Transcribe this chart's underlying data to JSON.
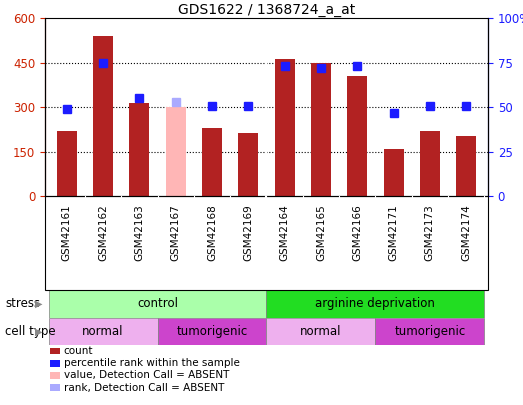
{
  "title": "GDS1622 / 1368724_a_at",
  "samples": [
    "GSM42161",
    "GSM42162",
    "GSM42163",
    "GSM42167",
    "GSM42168",
    "GSM42169",
    "GSM42164",
    "GSM42165",
    "GSM42166",
    "GSM42171",
    "GSM42173",
    "GSM42174"
  ],
  "counts": [
    220,
    540,
    315,
    300,
    230,
    215,
    463,
    450,
    405,
    158,
    220,
    205
  ],
  "percentile_ranks": [
    49,
    75,
    55,
    53,
    51,
    51,
    73,
    72,
    73,
    47,
    51,
    51
  ],
  "absent_indices": [
    3
  ],
  "bar_color_normal": "#B22222",
  "bar_color_absent": "#FFB6B6",
  "rank_color_normal": "#1C1CFF",
  "rank_color_absent": "#AAAAFF",
  "ylim_left": [
    0,
    600
  ],
  "ylim_right": [
    0,
    100
  ],
  "yticks_left": [
    0,
    150,
    300,
    450,
    600
  ],
  "yticks_right": [
    0,
    25,
    50,
    75,
    100
  ],
  "left_axis_color": "#CC2200",
  "right_axis_color": "#1C1CFF",
  "stress_groups": [
    {
      "label": "control",
      "start": 0,
      "end": 5,
      "color": "#AAFFAA"
    },
    {
      "label": "arginine deprivation",
      "start": 6,
      "end": 11,
      "color": "#22DD22"
    }
  ],
  "celltype_groups": [
    {
      "label": "normal",
      "start": 0,
      "end": 2,
      "color": "#EEB0EE"
    },
    {
      "label": "tumorigenic",
      "start": 3,
      "end": 5,
      "color": "#CC44CC"
    },
    {
      "label": "normal",
      "start": 6,
      "end": 8,
      "color": "#EEB0EE"
    },
    {
      "label": "tumorigenic",
      "start": 9,
      "end": 11,
      "color": "#CC44CC"
    }
  ],
  "bg_color": "#FFFFFF",
  "xtick_bg_color": "#D3D3D3",
  "bar_width": 0.55,
  "marker_size": 6,
  "xlim": [
    -0.6,
    11.6
  ]
}
